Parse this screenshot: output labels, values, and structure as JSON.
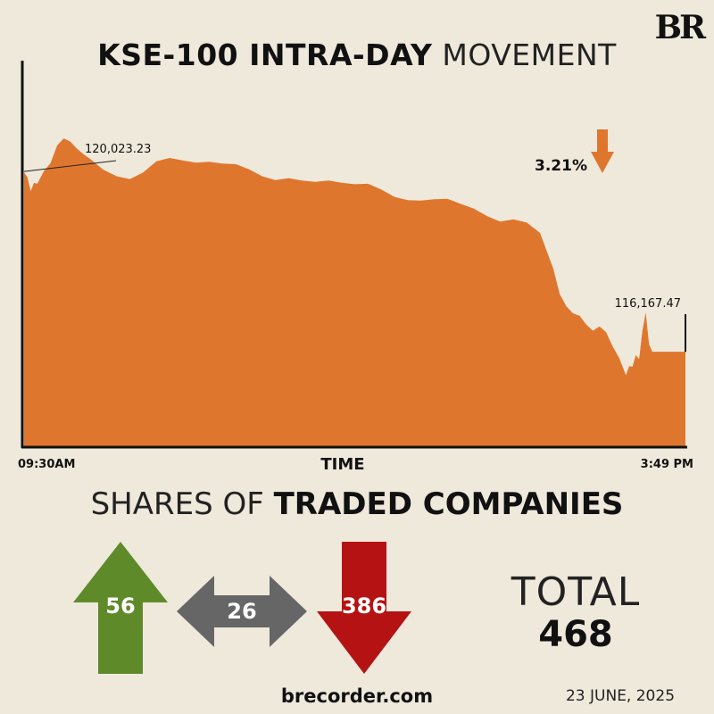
{
  "brand": {
    "logo": "BR",
    "website": "brecorder.com",
    "date": "23 JUNE, 2025"
  },
  "title": {
    "bold": "KSE-100 INTRA-DAY",
    "light": "MOVEMENT"
  },
  "chart_data": {
    "type": "area",
    "title": "KSE-100 INTRA-DAY MOVEMENT",
    "xlabel": "TIME",
    "ylabel": "",
    "x_start_label": "09:30AM",
    "x_end_label": "3:49 PM",
    "open_label": "120,023.23",
    "close_label": "116,167.47",
    "open_value": 120023.23,
    "close_value": 116167.47,
    "change_label": "3.21%",
    "change_direction": "down",
    "ylim": [
      114150,
      122390
    ],
    "time_fraction": [
      0,
      0.005,
      0.01,
      0.015,
      0.02,
      0.03,
      0.04,
      0.05,
      0.06,
      0.07,
      0.08,
      0.09,
      0.1,
      0.12,
      0.14,
      0.16,
      0.18,
      0.2,
      0.22,
      0.24,
      0.26,
      0.28,
      0.3,
      0.32,
      0.34,
      0.36,
      0.38,
      0.4,
      0.42,
      0.44,
      0.46,
      0.48,
      0.5,
      0.52,
      0.54,
      0.56,
      0.58,
      0.6,
      0.62,
      0.64,
      0.66,
      0.68,
      0.7,
      0.72,
      0.74,
      0.76,
      0.78,
      0.8,
      0.81,
      0.82,
      0.83,
      0.84,
      0.85,
      0.86,
      0.87,
      0.88,
      0.89,
      0.9,
      0.91,
      0.915,
      0.92,
      0.925,
      0.93,
      0.935,
      0.94,
      0.945,
      0.95,
      1.0
    ],
    "values": [
      120000,
      119900,
      119600,
      119780,
      119760,
      120030,
      120200,
      120580,
      120730,
      120660,
      120510,
      120390,
      120290,
      120060,
      119920,
      119860,
      120000,
      120240,
      120310,
      120260,
      120210,
      120230,
      120190,
      120180,
      120070,
      119920,
      119840,
      119880,
      119830,
      119800,
      119830,
      119780,
      119750,
      119760,
      119640,
      119480,
      119410,
      119400,
      119430,
      119440,
      119330,
      119230,
      119070,
      118950,
      119000,
      118930,
      118710,
      117950,
      117400,
      117140,
      116990,
      116940,
      116750,
      116620,
      116710,
      116590,
      116280,
      116030,
      115670,
      115860,
      115850,
      116100,
      116010,
      116620,
      117010,
      116330,
      116170,
      116170
    ]
  },
  "shares": {
    "title_light": "SHARES OF",
    "title_bold": "TRADED COMPANIES",
    "up": {
      "value": "56",
      "color": "#5f8a2a",
      "icon": "arrow-up-icon"
    },
    "unchanged": {
      "value": "26",
      "color": "#666666",
      "icon": "double-arrow-icon"
    },
    "down": {
      "value": "386",
      "color": "#b51313",
      "icon": "arrow-down-icon"
    },
    "total_label": "TOTAL",
    "total_value": "468"
  },
  "colors": {
    "background": "#efe9dc",
    "area": "#df762e",
    "axis": "#111111"
  }
}
